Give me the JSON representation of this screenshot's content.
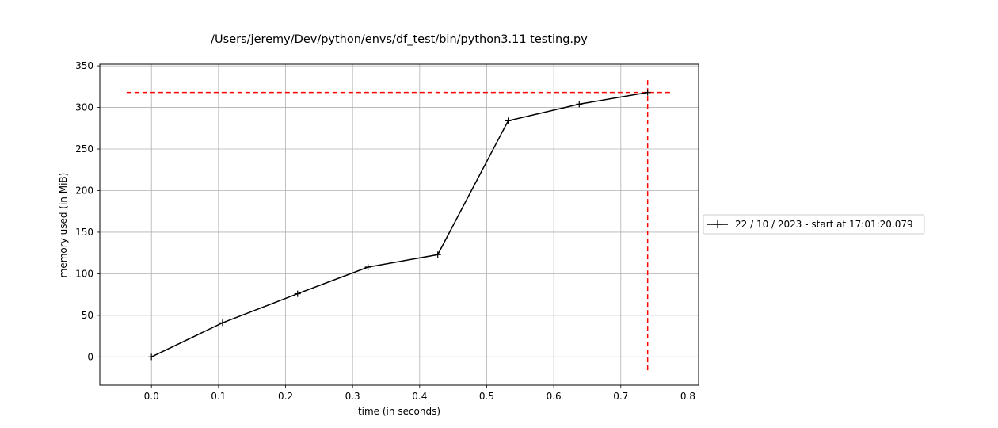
{
  "chart_data": {
    "type": "line",
    "title": "/Users/jeremy/Dev/python/envs/df_test/bin/python3.11 testing.py",
    "xlabel": "time (in seconds)",
    "ylabel": "memory used (in MiB)",
    "xlim": [
      -0.077,
      0.816
    ],
    "ylim": [
      -34,
      352
    ],
    "xticks": [
      0.0,
      0.1,
      0.2,
      0.3,
      0.4,
      0.5,
      0.6,
      0.7,
      0.8
    ],
    "xtick_labels": [
      "0.0",
      "0.1",
      "0.2",
      "0.3",
      "0.4",
      "0.5",
      "0.6",
      "0.7",
      "0.8"
    ],
    "yticks": [
      0,
      50,
      100,
      150,
      200,
      250,
      300,
      350
    ],
    "ytick_labels": [
      "0",
      "50",
      "100",
      "150",
      "200",
      "250",
      "300",
      "350"
    ],
    "grid": true,
    "legend_position": "outside-right",
    "series": [
      {
        "name": "22 / 10 / 2023 - start at 17:01:20.079",
        "color": "#000000",
        "marker": "plus",
        "x": [
          0.0,
          0.106,
          0.218,
          0.323,
          0.427,
          0.532,
          0.638,
          0.74
        ],
        "y": [
          0,
          41,
          76,
          108,
          123,
          284,
          304,
          318
        ]
      }
    ],
    "reference_lines": [
      {
        "orientation": "horizontal",
        "value": 318,
        "from": -0.037,
        "to": 0.775,
        "color": "#ff0000",
        "style": "dashed"
      },
      {
        "orientation": "vertical",
        "value": 0.74,
        "from": -16,
        "to": 336,
        "color": "#ff0000",
        "style": "dashed"
      }
    ]
  }
}
